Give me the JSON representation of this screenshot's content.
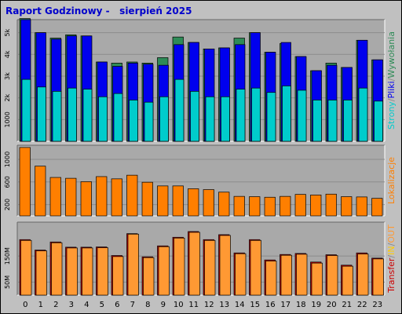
{
  "title": "Raport Godzinowy -   sierpień 2025",
  "colors": {
    "background": "#c0c0c0",
    "plot_bg": "#a9a9a9",
    "pages": "#00cccc",
    "files": "#0000ee",
    "hits": "#2e8b57",
    "visits": "#ff7f00",
    "kbytes": "#cc0000",
    "in": "#ffcc00",
    "out": "#ff9933",
    "title": "#0000cc"
  },
  "right_labels": {
    "top": [
      {
        "text": "Strony",
        "color": "#00cccc"
      },
      {
        "text": "/",
        "color": "#888888"
      },
      {
        "text": "Pliki",
        "color": "#0000ee"
      },
      {
        "text": "/",
        "color": "#888888"
      },
      {
        "text": "Wywołania",
        "color": "#2e8b57"
      }
    ],
    "middle": [
      {
        "text": "Lokalizacje",
        "color": "#ff7f00"
      }
    ],
    "bottom": [
      {
        "text": "Transfer",
        "color": "#cc0000"
      },
      {
        "text": "/",
        "color": "#888888"
      },
      {
        "text": "IN",
        "color": "#ffcc00"
      },
      {
        "text": "/",
        "color": "#888888"
      },
      {
        "text": "OUT",
        "color": "#ff9933"
      }
    ]
  },
  "chart_data": [
    {
      "type": "bar",
      "name": "hits-files-pages",
      "categories": [
        "0",
        "1",
        "2",
        "3",
        "4",
        "5",
        "6",
        "7",
        "8",
        "9",
        "10",
        "11",
        "12",
        "13",
        "14",
        "15",
        "16",
        "17",
        "18",
        "19",
        "20",
        "21",
        "22",
        "23"
      ],
      "ylim": [
        0,
        5600
      ],
      "y_ticks": [
        {
          "label": "1000",
          "value": 1000
        },
        {
          "label": "2k",
          "value": 2000
        },
        {
          "label": "3k",
          "value": 3000
        },
        {
          "label": "4k",
          "value": 4000
        },
        {
          "label": "5k",
          "value": 5000
        }
      ],
      "series": [
        {
          "key": "hits",
          "values": [
            5650,
            5000,
            4750,
            4900,
            4850,
            3650,
            3600,
            3650,
            3600,
            3850,
            4800,
            4550,
            4250,
            4300,
            4750,
            5000,
            4100,
            4500,
            3900,
            3250,
            3600,
            3400,
            4650,
            3750
          ]
        },
        {
          "key": "files",
          "values": [
            5600,
            5000,
            4700,
            4850,
            4850,
            3650,
            3450,
            3600,
            3550,
            3500,
            4450,
            4550,
            4250,
            4300,
            4450,
            5000,
            4100,
            4550,
            3900,
            3250,
            3500,
            3400,
            4650,
            3750
          ]
        },
        {
          "key": "pages",
          "values": [
            2850,
            2500,
            2300,
            2450,
            2400,
            2050,
            2200,
            1900,
            1800,
            2050,
            2850,
            2300,
            2050,
            2050,
            2400,
            2450,
            2250,
            2550,
            2350,
            1900,
            1900,
            1900,
            2450,
            1850
          ]
        }
      ]
    },
    {
      "type": "bar",
      "name": "visits",
      "categories": [
        "0",
        "1",
        "2",
        "3",
        "4",
        "5",
        "6",
        "7",
        "8",
        "9",
        "10",
        "11",
        "12",
        "13",
        "14",
        "15",
        "16",
        "17",
        "18",
        "19",
        "20",
        "21",
        "22",
        "23"
      ],
      "ylim": [
        0,
        1250
      ],
      "y_ticks": [
        {
          "label": "200",
          "value": 200
        },
        {
          "label": "600",
          "value": 600
        },
        {
          "label": "1000",
          "value": 1000
        }
      ],
      "series": [
        {
          "key": "visits",
          "values": [
            1210,
            880,
            680,
            665,
            605,
            695,
            655,
            720,
            595,
            530,
            530,
            480,
            465,
            420,
            345,
            340,
            330,
            345,
            380,
            370,
            385,
            340,
            335,
            310
          ]
        }
      ]
    },
    {
      "type": "bar",
      "name": "kbytes-in-out",
      "categories": [
        "0",
        "1",
        "2",
        "3",
        "4",
        "5",
        "6",
        "7",
        "8",
        "9",
        "10",
        "11",
        "12",
        "13",
        "14",
        "15",
        "16",
        "17",
        "18",
        "19",
        "20",
        "21",
        "22",
        "23"
      ],
      "ylim": [
        0,
        280
      ],
      "y_ticks": [
        {
          "label": "50M",
          "value": 50
        },
        {
          "label": "150M",
          "value": 150
        }
      ],
      "series": [
        {
          "key": "kbytes",
          "values": [
            213,
            173,
            204,
            184,
            184,
            185,
            152,
            236,
            147,
            189,
            222,
            244,
            213,
            232,
            162,
            213,
            135,
            156,
            160,
            127,
            155,
            115,
            162,
            142
          ]
        },
        {
          "key": "out",
          "values": [
            210,
            170,
            201,
            181,
            181,
            182,
            148,
            234,
            144,
            186,
            219,
            241,
            210,
            229,
            159,
            210,
            131,
            153,
            157,
            123,
            152,
            111,
            158,
            139
          ]
        }
      ]
    }
  ]
}
